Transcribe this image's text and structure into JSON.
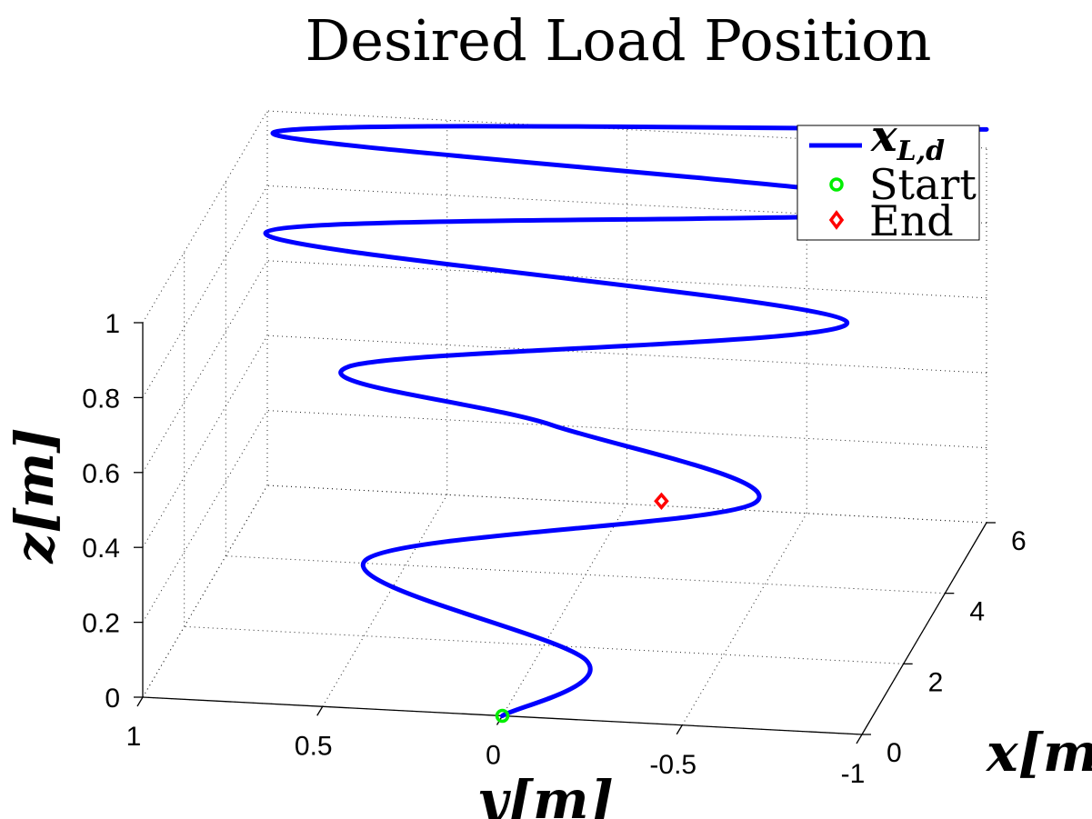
{
  "chart_data": {
    "type": "line",
    "title": "Desired Load Position",
    "xlabel": "x[m]",
    "ylabel": "y[m]",
    "zlabel": "z[m]",
    "xlim": [
      0,
      6
    ],
    "ylim": [
      -1,
      1
    ],
    "zlim": [
      0,
      1
    ],
    "x_ticks": [
      "0",
      "2",
      "4",
      "6"
    ],
    "y_ticks": [
      "1",
      "0.5",
      "0",
      "-0.5",
      "-1"
    ],
    "z_ticks": [
      "0",
      "0.2",
      "0.4",
      "0.6",
      "0.8",
      "1"
    ],
    "grid": true,
    "legend_position": "top-right",
    "series": [
      {
        "name": "x_{L,d}",
        "color": "#0000ff",
        "points": [
          {
            "x": 0.0,
            "y": 0.0,
            "z": 0.0
          },
          {
            "x": 0.6,
            "y": -0.2,
            "z": 0.1
          },
          {
            "x": 1.2,
            "y": 0.45,
            "z": 0.28
          },
          {
            "x": 1.8,
            "y": -0.6,
            "z": 0.43
          },
          {
            "x": 2.4,
            "y": 0.0,
            "z": 0.55
          },
          {
            "x": 3.0,
            "y": 0.6,
            "z": 0.62
          },
          {
            "x": 3.6,
            "y": -0.75,
            "z": 0.75
          },
          {
            "x": 4.2,
            "y": 0.9,
            "z": 0.85
          },
          {
            "x": 4.8,
            "y": -0.95,
            "z": 0.95
          },
          {
            "x": 5.4,
            "y": 0.95,
            "z": 1.0
          },
          {
            "x": 6.0,
            "y": -1.0,
            "z": 1.05
          }
        ]
      }
    ],
    "markers": [
      {
        "name": "Start",
        "color": "#00ee00",
        "shape": "circle",
        "x": 0.0,
        "y": 0.0,
        "z": 0.0
      },
      {
        "name": "End",
        "color": "#ff0000",
        "shape": "diamond",
        "x": 1.6,
        "y": -0.35,
        "z": 0.44
      }
    ]
  }
}
